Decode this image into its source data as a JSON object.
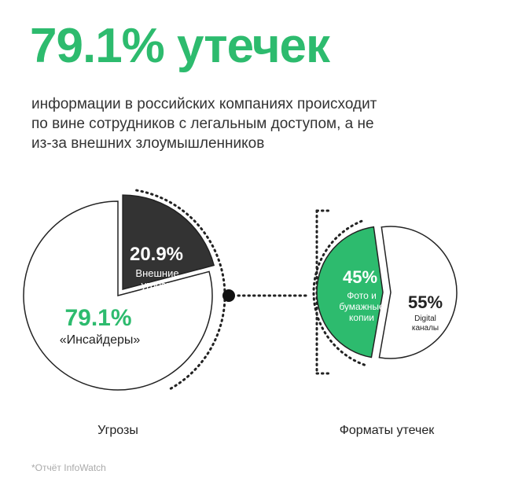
{
  "headline": "79.1% утечек",
  "subtitle": "информации в российских компаниях происходит\nпо вине сотрудников с легальным доступом, а не\nиз-за внешних злоумышленников",
  "footnote": "*Отчёт InfoWatch",
  "colors": {
    "accent": "#2dbb6e",
    "dark": "#333333",
    "text": "#222222",
    "light_text": "#ffffff",
    "footnote": "#aaaaaa"
  },
  "chart_data": [
    {
      "type": "pie",
      "title": "Угрозы",
      "slices": [
        {
          "label": "«Инсайдеры»",
          "value_label": "79.1%",
          "value": 79.1,
          "color": "#ffffff"
        },
        {
          "label": "Внешние\nугрозы",
          "value_label": "20.9%",
          "value": 20.9,
          "color": "#333333"
        }
      ]
    },
    {
      "type": "pie",
      "title": "Форматы утечек",
      "slices": [
        {
          "label": "Фото и\nбумажные\nкопии",
          "value_label": "45%",
          "value": 45,
          "color": "#2dbb6e"
        },
        {
          "label": "Digital\nканалы",
          "value_label": "55%",
          "value": 55,
          "color": "#ffffff"
        }
      ]
    }
  ]
}
